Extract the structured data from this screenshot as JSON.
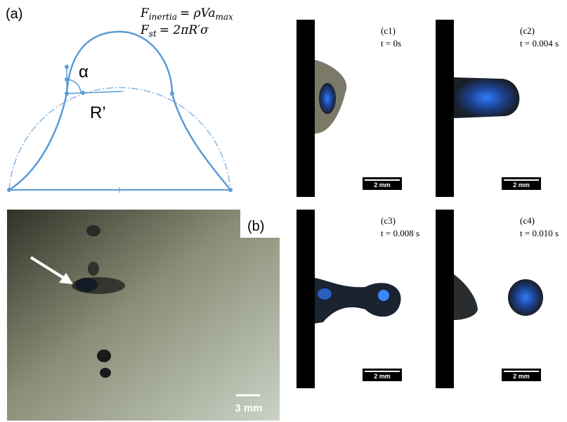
{
  "panel_a": {
    "label": "(a)",
    "equations": [
      {
        "symbol": "F",
        "subscript": "inertia",
        "rhs": "= ρVa",
        "rhs_subscript": "max"
      },
      {
        "symbol": "F",
        "subscript": "st",
        "rhs": "= 2πR′σ"
      }
    ],
    "angle_label": "α",
    "radius_label": "R’"
  },
  "panel_b": {
    "label": "(b)",
    "scale_bar": "3 mm"
  },
  "panel_c": {
    "frames": [
      {
        "label": "(c1)",
        "time": "t = 0s",
        "scale_bar": "2 mm"
      },
      {
        "label": "(c2)",
        "time": "t = 0.004 s",
        "scale_bar": "2 mm"
      },
      {
        "label": "(c3)",
        "time": "t = 0.008 s",
        "scale_bar": "2 mm"
      },
      {
        "label": "(c4)",
        "time": "t = 0.010 s",
        "scale_bar": "2 mm"
      }
    ]
  }
}
